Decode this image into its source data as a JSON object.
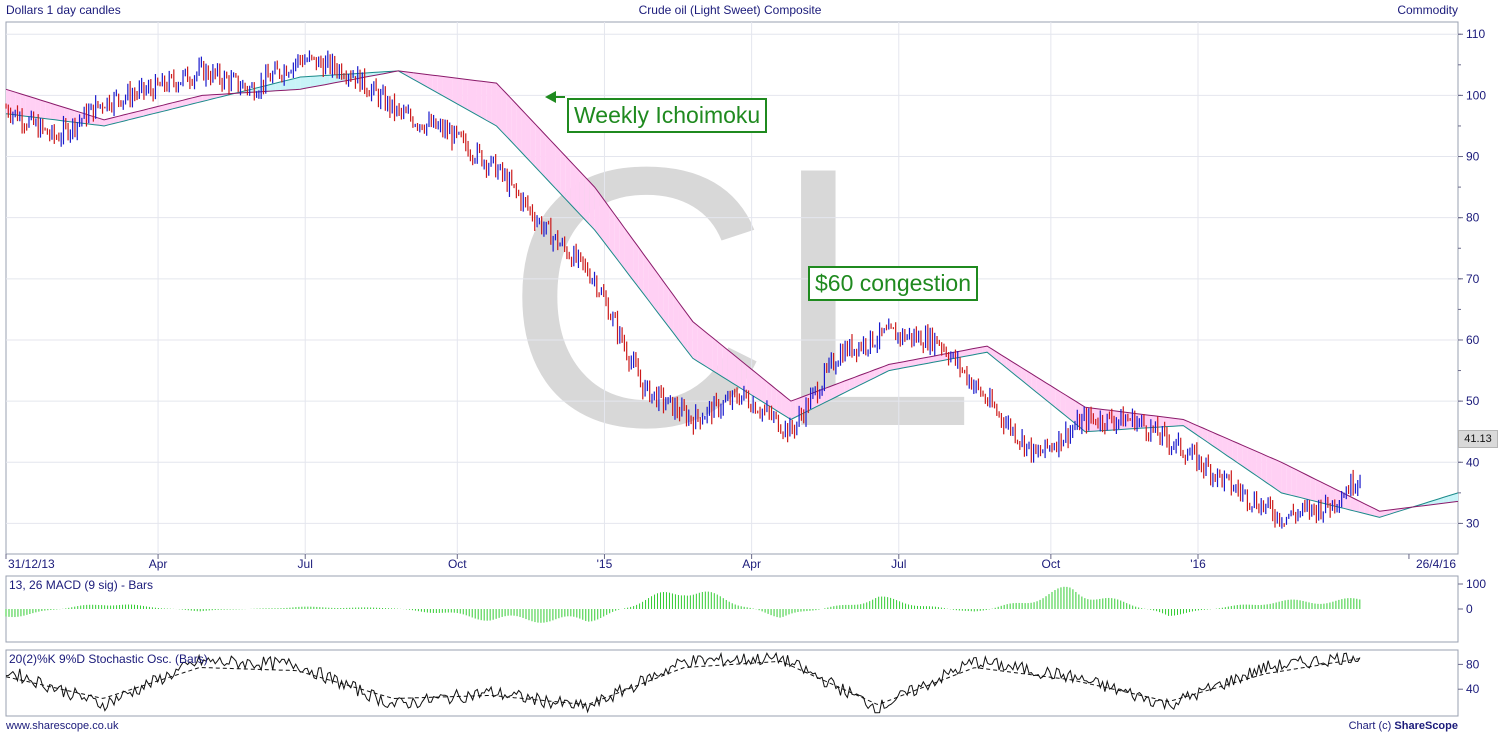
{
  "header": {
    "left": "Dollars 1 day candles",
    "center": "Crude oil (Light Sweet) Composite",
    "right": "Commodity"
  },
  "footer": {
    "left": "www.sharescope.co.uk",
    "right_prefix": "Chart (c) ",
    "right_brand": "ShareScope"
  },
  "watermark": "CL",
  "last_price": "41.13",
  "annotations": {
    "weekly": "Weekly Ichoimoku",
    "congestion": "$60 congestion"
  },
  "colors": {
    "up": "#1a1acc",
    "down": "#cc1a1a",
    "cloud_bear": "#ffd0f4",
    "cloud_bull": "#c8f4f8",
    "span_a": "#1a8a8a",
    "span_b": "#8a1a6a",
    "macd_bar": "#33cc33",
    "annotation": "#1f8a1f",
    "axis_text": "#1a1a7a"
  },
  "chart_data": [
    {
      "type": "line",
      "title": "Crude oil (Light Sweet) Composite",
      "subtitle": "Dollars 1 day candles",
      "x_tick_labels": [
        "31/12/13",
        "Apr",
        "Jul",
        "Oct",
        "'15",
        "Apr",
        "Jul",
        "Oct",
        "'16",
        "26/4/16"
      ],
      "y_ticks": [
        30,
        40,
        50,
        60,
        70,
        80,
        90,
        100,
        110
      ],
      "ylim": [
        25,
        112
      ],
      "grid": true,
      "last_value": 41.13,
      "series": [
        {
          "x": [
            "Dec-13",
            "Jan-14",
            "Feb-14",
            "Mar-14",
            "Apr-14",
            "May-14",
            "Jun-14",
            "Jul-14",
            "Aug-14",
            "Sep-14",
            "Oct-14",
            "Nov-14",
            "Dec-14",
            "Jan-15",
            "Feb-15",
            "Mar-15",
            "Apr-15",
            "May-15",
            "Jun-15",
            "Jul-15",
            "Aug-15",
            "Sep-15",
            "Oct-15",
            "Nov-15",
            "Dec-15",
            "Jan-16",
            "Feb-16",
            "Mar-16",
            "Apr-16"
          ],
          "values": [
            98,
            93,
            99,
            101,
            104,
            101,
            106,
            104,
            97,
            94,
            88,
            78,
            70,
            52,
            47,
            51,
            45,
            58,
            61,
            60,
            50,
            41,
            47,
            47,
            42,
            36,
            31,
            33,
            41.13
          ]
        }
      ],
      "ichimoku_cloud": {
        "x": [
          "Dec-13",
          "Feb-14",
          "Apr-14",
          "Jun-14",
          "Aug-14",
          "Oct-14",
          "Dec-14",
          "Feb-15",
          "Apr-15",
          "Jun-15",
          "Aug-15",
          "Oct-15",
          "Dec-15",
          "Feb-16",
          "Apr-16",
          "Jun-16"
        ],
        "span_a": [
          97,
          95,
          99,
          103,
          104,
          95,
          78,
          57,
          47,
          55,
          58,
          45,
          46,
          35,
          31,
          36
        ],
        "span_b": [
          101,
          96,
          100,
          101,
          104,
          102,
          85,
          63,
          50,
          56,
          59,
          49,
          47,
          40,
          32,
          34
        ]
      },
      "annotations": [
        "Weekly Ichoimoku",
        "$60 congestion"
      ]
    },
    {
      "type": "bar",
      "title": "13, 26 MACD (9 sig) - Bars",
      "y_ticks": [
        0,
        100
      ],
      "x": [
        "Jan-14",
        "Mar-14",
        "May-14",
        "Jul-14",
        "Sep-14",
        "Nov-14",
        "Jan-15",
        "Mar-15",
        "May-15",
        "Jul-15",
        "Sep-15",
        "Nov-15",
        "Jan-16",
        "Mar-16",
        "Apr-16"
      ],
      "values": [
        -40,
        30,
        -10,
        10,
        5,
        -50,
        -60,
        110,
        -40,
        55,
        -20,
        100,
        -30,
        35,
        45
      ]
    },
    {
      "type": "line",
      "title": "20(2)%K 9%D Stochastic Osc. (Bars)",
      "y_ticks": [
        40,
        80
      ],
      "ylim": [
        0,
        100
      ],
      "x": [
        "Jan-14",
        "Mar-14",
        "May-14",
        "Jul-14",
        "Sep-14",
        "Nov-14",
        "Jan-15",
        "Mar-15",
        "May-15",
        "Jul-15",
        "Sep-15",
        "Nov-15",
        "Jan-16",
        "Mar-16",
        "Apr-16"
      ],
      "series": [
        {
          "values": [
            70,
            15,
            85,
            80,
            15,
            35,
            10,
            85,
            90,
            10,
            85,
            60,
            15,
            75,
            95
          ]
        },
        {
          "values": [
            60,
            25,
            75,
            70,
            25,
            30,
            15,
            75,
            85,
            15,
            75,
            55,
            20,
            65,
            90
          ]
        }
      ]
    }
  ]
}
